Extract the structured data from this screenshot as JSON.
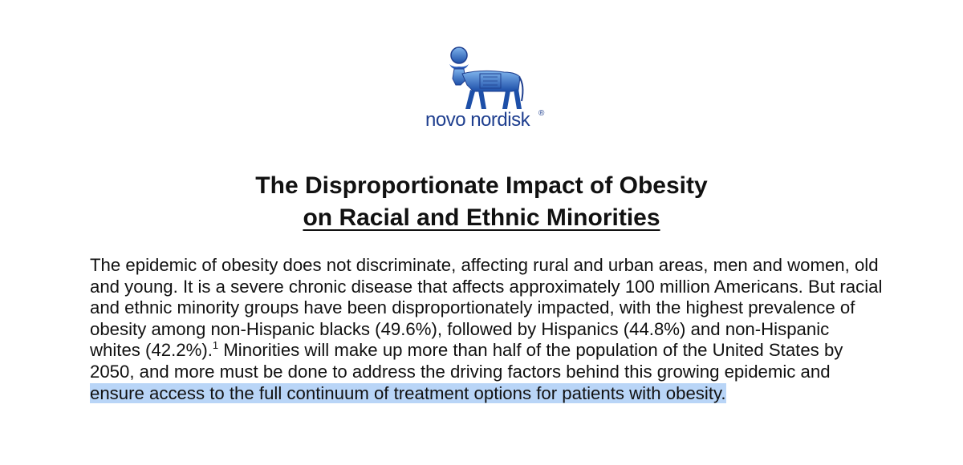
{
  "logo": {
    "brand_text": "novo nordisk",
    "registered_mark": "®",
    "brand_color": "#1f3f8f",
    "icon": "apis-bull-logo-icon"
  },
  "document": {
    "title_line1": "The Disproportionate Impact of Obesity",
    "title_line2": "on Racial and Ethnic Minorities",
    "paragraph_part1": "The epidemic of obesity does not discriminate, affecting rural and urban areas, men and women, old and young. It is a severe chronic disease that affects approximately 100 million Americans. But racial and ethnic minority groups have been disproportionately impacted, with the highest prevalence of obesity among non-Hispanic blacks (49.6%), followed by Hispanics (44.8%) and non-Hispanic whites (42.2%).",
    "footnote_ref": "1",
    "paragraph_part2": " Minorities will make up more than half of the population of the United States by 2050, and more must be done to address the driving factors behind this growing epidemic and ",
    "highlighted_text": "ensure access to the full continuum of treatment options for patients with obesity.",
    "highlight_color": "#b9d5f7"
  }
}
